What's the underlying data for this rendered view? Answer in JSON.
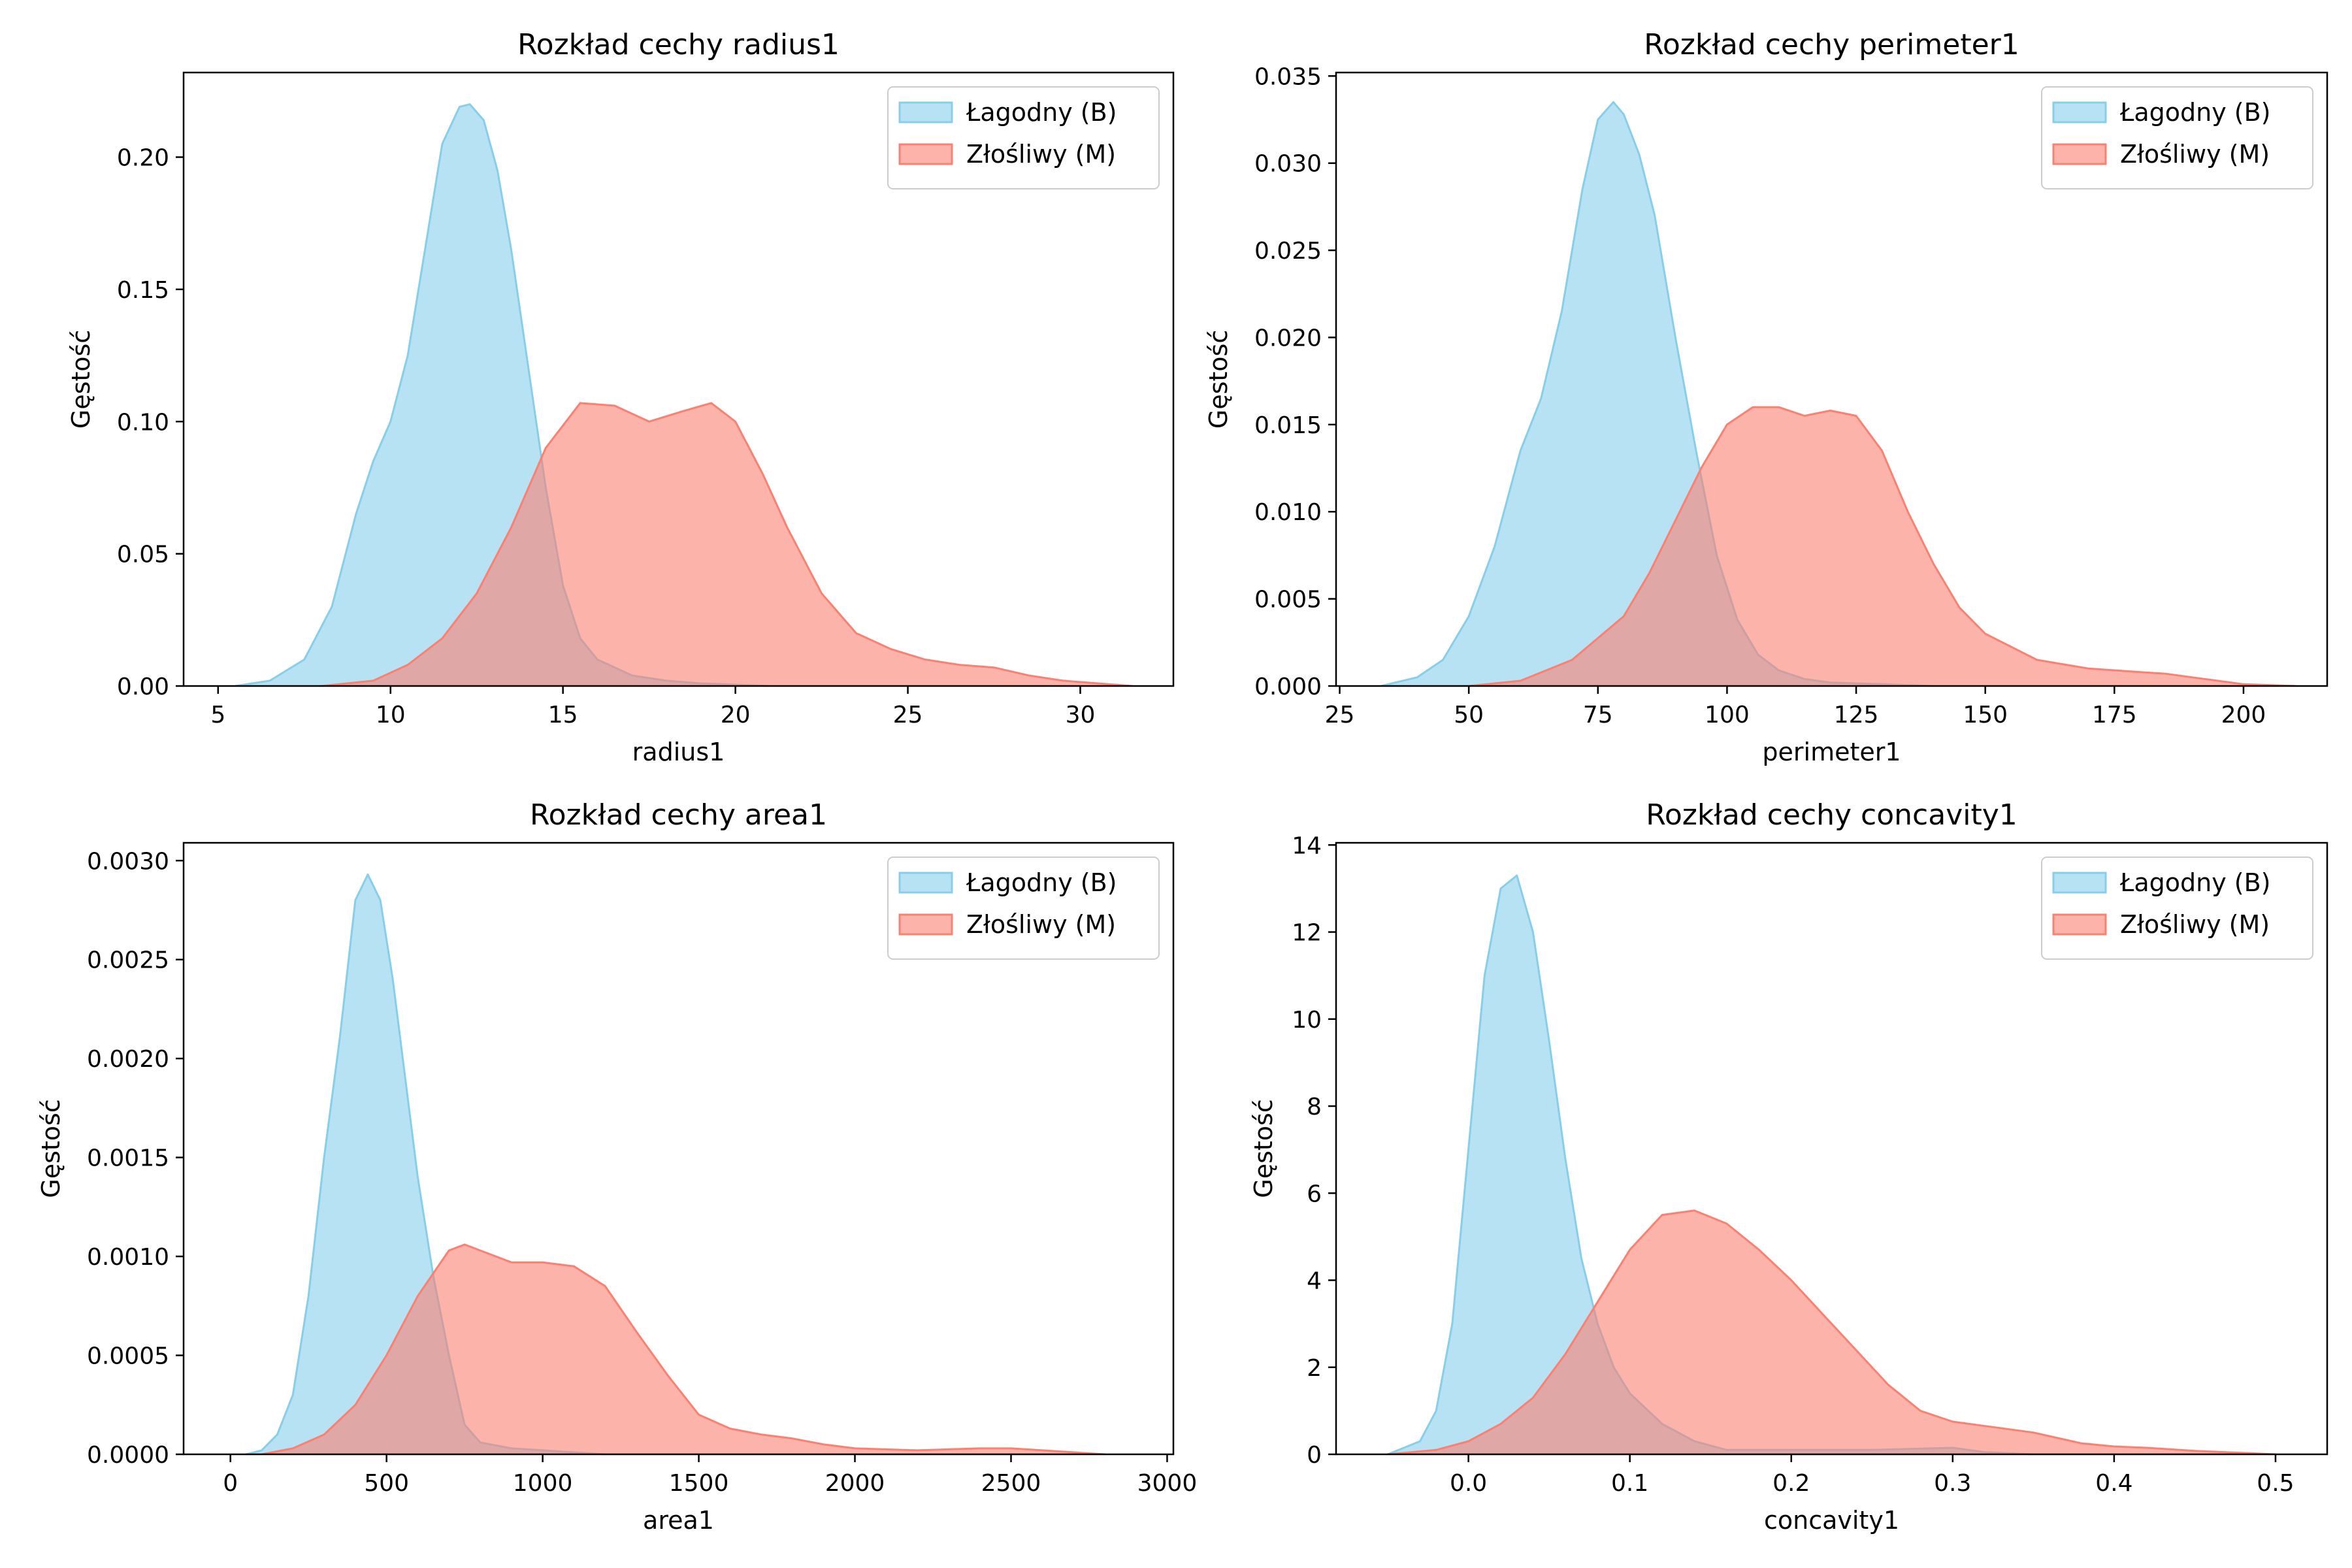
{
  "colors": {
    "benign": "#87CEEB",
    "malignant": "#FA8072",
    "axis": "#000000",
    "background": "#ffffff"
  },
  "chart_data": [
    {
      "type": "area",
      "title": "Rozkład cechy radius1",
      "xlabel": "radius1",
      "ylabel": "Gęstość",
      "xlim": [
        4.0,
        32.7
      ],
      "ylim": [
        0,
        0.232
      ],
      "xticks": [
        5,
        10,
        15,
        20,
        25,
        30
      ],
      "xtick_labels": [
        "5",
        "10",
        "15",
        "20",
        "25",
        "30"
      ],
      "yticks": [
        0,
        0.05,
        0.1,
        0.15,
        0.2
      ],
      "ytick_labels": [
        "0.00",
        "0.05",
        "0.10",
        "0.15",
        "0.20"
      ],
      "legend": {
        "position": "top-right",
        "entries": [
          "Łagodny (B)",
          "Złośliwy (M)"
        ]
      },
      "series": [
        {
          "name": "Łagodny (B)",
          "color": "#87CEEB",
          "x": [
            5.5,
            6.5,
            7.5,
            8.3,
            9.0,
            9.5,
            10.0,
            10.5,
            11.0,
            11.5,
            12.0,
            12.3,
            12.7,
            13.1,
            13.5,
            14.0,
            14.5,
            15.0,
            15.5,
            16.0,
            17.0,
            18.0,
            19.0,
            20.0,
            21.0
          ],
          "values": [
            0,
            0.002,
            0.01,
            0.03,
            0.065,
            0.085,
            0.1,
            0.125,
            0.165,
            0.205,
            0.219,
            0.22,
            0.214,
            0.195,
            0.165,
            0.12,
            0.075,
            0.038,
            0.018,
            0.01,
            0.004,
            0.002,
            0.001,
            0.0005,
            0
          ]
        },
        {
          "name": "Złośliwy (M)",
          "color": "#FA8072",
          "x": [
            8.0,
            9.5,
            10.5,
            11.5,
            12.5,
            13.5,
            14.5,
            15.5,
            16.5,
            17.5,
            18.5,
            19.3,
            20.0,
            20.8,
            21.5,
            22.5,
            23.5,
            24.5,
            25.5,
            26.5,
            27.5,
            28.5,
            29.5,
            30.5,
            31.5
          ],
          "values": [
            0,
            0.002,
            0.008,
            0.018,
            0.035,
            0.06,
            0.09,
            0.107,
            0.106,
            0.1,
            0.104,
            0.107,
            0.1,
            0.08,
            0.06,
            0.035,
            0.02,
            0.014,
            0.01,
            0.008,
            0.007,
            0.004,
            0.002,
            0.001,
            0
          ]
        }
      ]
    },
    {
      "type": "area",
      "title": "Rozkład cechy perimeter1",
      "xlabel": "perimeter1",
      "ylabel": "Gęstość",
      "xlim": [
        24.3,
        216.2
      ],
      "ylim": [
        0,
        0.0352
      ],
      "xticks": [
        25,
        50,
        75,
        100,
        125,
        150,
        175,
        200
      ],
      "xtick_labels": [
        "25",
        "50",
        "75",
        "100",
        "125",
        "150",
        "175",
        "200"
      ],
      "yticks": [
        0,
        0.005,
        0.01,
        0.015,
        0.02,
        0.025,
        0.03,
        0.035
      ],
      "ytick_labels": [
        "0.000",
        "0.005",
        "0.010",
        "0.015",
        "0.020",
        "0.025",
        "0.030",
        "0.035"
      ],
      "legend": {
        "position": "top-right",
        "entries": [
          "Łagodny (B)",
          "Złośliwy (M)"
        ]
      },
      "series": [
        {
          "name": "Łagodny (B)",
          "color": "#87CEEB",
          "x": [
            33,
            40,
            45,
            50,
            55,
            60,
            64,
            68,
            72,
            75,
            78,
            80,
            83,
            86,
            90,
            94,
            98,
            102,
            106,
            110,
            115,
            120,
            130,
            140
          ],
          "values": [
            0,
            0.0005,
            0.0015,
            0.004,
            0.008,
            0.0135,
            0.0165,
            0.0215,
            0.0285,
            0.0325,
            0.0335,
            0.0328,
            0.0305,
            0.027,
            0.02,
            0.0135,
            0.0075,
            0.0038,
            0.0018,
            0.0009,
            0.0004,
            0.0002,
            0.0001,
            0
          ]
        },
        {
          "name": "Złośliwy (M)",
          "color": "#FA8072",
          "x": [
            50,
            60,
            70,
            80,
            85,
            90,
            95,
            100,
            105,
            110,
            115,
            120,
            125,
            130,
            135,
            140,
            145,
            150,
            160,
            170,
            180,
            185,
            190,
            200,
            210
          ],
          "values": [
            0,
            0.0003,
            0.0015,
            0.004,
            0.0065,
            0.0095,
            0.0125,
            0.015,
            0.016,
            0.016,
            0.0155,
            0.0158,
            0.0155,
            0.0135,
            0.01,
            0.007,
            0.0045,
            0.003,
            0.0015,
            0.001,
            0.0008,
            0.0007,
            0.0005,
            0.0001,
            0
          ]
        }
      ]
    },
    {
      "type": "area",
      "title": "Rozkład cechy area1",
      "xlabel": "area1",
      "ylabel": "Gęstość",
      "xlim": [
        -150,
        3020
      ],
      "ylim": [
        0,
        0.00309
      ],
      "xticks": [
        0,
        500,
        1000,
        1500,
        2000,
        2500,
        3000
      ],
      "xtick_labels": [
        "0",
        "500",
        "1000",
        "1500",
        "2000",
        "2500",
        "3000"
      ],
      "yticks": [
        0,
        0.0005,
        0.001,
        0.0015,
        0.002,
        0.0025,
        0.003
      ],
      "ytick_labels": [
        "0.0000",
        "0.0005",
        "0.0010",
        "0.0015",
        "0.0020",
        "0.0025",
        "0.0030"
      ],
      "legend": {
        "position": "top-right",
        "entries": [
          "Łagodny (B)",
          "Złośliwy (M)"
        ]
      },
      "series": [
        {
          "name": "Łagodny (B)",
          "color": "#87CEEB",
          "x": [
            50,
            100,
            150,
            200,
            250,
            300,
            350,
            400,
            440,
            480,
            520,
            560,
            600,
            650,
            700,
            750,
            800,
            900,
            1000,
            1100,
            1200
          ],
          "values": [
            0,
            2e-05,
            0.0001,
            0.0003,
            0.0008,
            0.0015,
            0.0021,
            0.0028,
            0.00293,
            0.0028,
            0.0024,
            0.0019,
            0.0014,
            0.0009,
            0.0005,
            0.00015,
            6e-05,
            3e-05,
            2e-05,
            1e-05,
            0
          ]
        },
        {
          "name": "Złośliwy (M)",
          "color": "#FA8072",
          "x": [
            100,
            200,
            300,
            400,
            500,
            600,
            700,
            750,
            800,
            900,
            1000,
            1100,
            1200,
            1300,
            1400,
            1500,
            1600,
            1700,
            1800,
            1900,
            2000,
            2200,
            2400,
            2500,
            2600,
            2800
          ],
          "values": [
            0,
            3e-05,
            0.0001,
            0.00025,
            0.0005,
            0.0008,
            0.00103,
            0.00106,
            0.00103,
            0.00097,
            0.00097,
            0.00095,
            0.00085,
            0.00062,
            0.0004,
            0.0002,
            0.00013,
            0.0001,
            8e-05,
            5e-05,
            3e-05,
            2e-05,
            3e-05,
            3e-05,
            2e-05,
            0
          ]
        }
      ]
    },
    {
      "type": "area",
      "title": "Rozkład cechy concavity1",
      "xlabel": "concavity1",
      "ylabel": "Gęstość",
      "xlim": [
        -0.082,
        0.532
      ],
      "ylim": [
        0,
        14.05
      ],
      "xticks": [
        0,
        0.1,
        0.2,
        0.3,
        0.4,
        0.5
      ],
      "xtick_labels": [
        "0.0",
        "0.1",
        "0.2",
        "0.3",
        "0.4",
        "0.5"
      ],
      "yticks": [
        0,
        2,
        4,
        6,
        8,
        10,
        12,
        14
      ],
      "ytick_labels": [
        "0",
        "2",
        "4",
        "6",
        "8",
        "10",
        "12",
        "14"
      ],
      "legend": {
        "position": "top-right",
        "entries": [
          "Łagodny (B)",
          "Złośliwy (M)"
        ]
      },
      "series": [
        {
          "name": "Łagodny (B)",
          "color": "#87CEEB",
          "x": [
            -0.05,
            -0.03,
            -0.02,
            -0.01,
            0.0,
            0.01,
            0.02,
            0.03,
            0.04,
            0.05,
            0.06,
            0.07,
            0.08,
            0.09,
            0.1,
            0.12,
            0.14,
            0.16,
            0.2,
            0.25,
            0.3,
            0.32,
            0.35
          ],
          "values": [
            0,
            0.3,
            1.0,
            3.0,
            7.0,
            11.0,
            13.0,
            13.3,
            12.0,
            9.5,
            6.8,
            4.5,
            3.0,
            2.0,
            1.4,
            0.7,
            0.3,
            0.1,
            0.1,
            0.1,
            0.15,
            0.05,
            0
          ]
        },
        {
          "name": "Złośliwy (M)",
          "color": "#FA8072",
          "x": [
            -0.05,
            -0.02,
            0.0,
            0.02,
            0.04,
            0.06,
            0.08,
            0.1,
            0.12,
            0.14,
            0.16,
            0.18,
            0.2,
            0.22,
            0.24,
            0.26,
            0.28,
            0.3,
            0.32,
            0.35,
            0.38,
            0.4,
            0.42,
            0.45,
            0.5
          ],
          "values": [
            0,
            0.1,
            0.3,
            0.7,
            1.3,
            2.3,
            3.5,
            4.7,
            5.5,
            5.6,
            5.3,
            4.7,
            4.0,
            3.2,
            2.4,
            1.6,
            1.0,
            0.75,
            0.65,
            0.5,
            0.25,
            0.18,
            0.15,
            0.08,
            0
          ]
        }
      ]
    }
  ]
}
